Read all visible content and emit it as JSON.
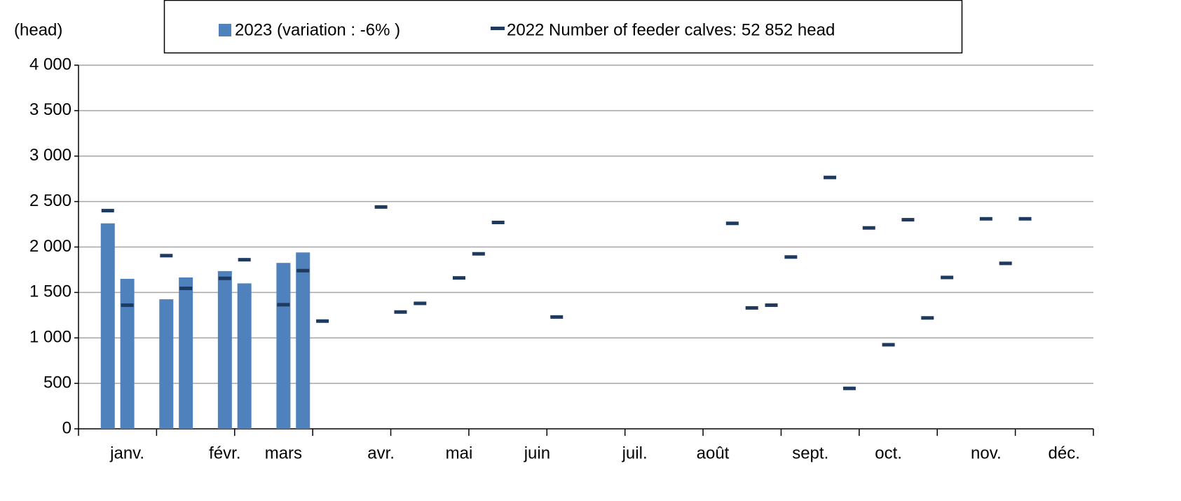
{
  "chart_data": {
    "type": "bar",
    "y_label": "(head)",
    "categories": [
      null,
      null,
      "janv.",
      null,
      null,
      null,
      null,
      "févr.",
      null,
      null,
      "mars",
      null,
      null,
      null,
      null,
      "avr.",
      null,
      null,
      null,
      "mai",
      null,
      null,
      null,
      "juin",
      null,
      null,
      null,
      null,
      "juil.",
      null,
      null,
      null,
      "août",
      null,
      null,
      null,
      null,
      "sept.",
      null,
      null,
      null,
      "oct.",
      null,
      null,
      null,
      null,
      "nov.",
      null,
      null,
      null,
      "déc.",
      null
    ],
    "series": [
      {
        "name": "2023 (variation : -6% )",
        "type": "bar",
        "color": "#4f81bd",
        "values": [
          null,
          2260,
          1650,
          null,
          1425,
          1665,
          null,
          1735,
          1600,
          null,
          1825,
          1940,
          null,
          null,
          null,
          null,
          null,
          null,
          null,
          null,
          null,
          null,
          null,
          null,
          null,
          null,
          null,
          null,
          null,
          null,
          null,
          null,
          null,
          null,
          null,
          null,
          null,
          null,
          null,
          null,
          null,
          null,
          null,
          null,
          null,
          null,
          null,
          null,
          null,
          null,
          null,
          null
        ]
      },
      {
        "name": "2022 Number of feeder calves: 52 852 head",
        "type": "dash",
        "color": "#1f3a5f",
        "values": [
          null,
          2400,
          1360,
          null,
          1905,
          1545,
          null,
          1655,
          1860,
          null,
          1365,
          1740,
          1185,
          null,
          null,
          2440,
          1285,
          1380,
          null,
          1660,
          1925,
          2270,
          null,
          null,
          1230,
          null,
          null,
          null,
          null,
          null,
          null,
          null,
          null,
          2260,
          1330,
          1360,
          1890,
          null,
          2765,
          445,
          2210,
          925,
          2300,
          1220,
          1665,
          null,
          2310,
          1820,
          2310,
          null,
          null,
          null
        ]
      }
    ],
    "ylim": [
      0,
      4000
    ],
    "yticks": [
      0,
      500,
      {
        "value": 1000,
        "label": "1 000"
      },
      {
        "value": 1500,
        "label": "1 500"
      },
      {
        "value": 2000,
        "label": "2 000"
      },
      {
        "value": 2500,
        "label": "2 500"
      },
      {
        "value": 3000,
        "label": "3 000"
      },
      {
        "value": 3500,
        "label": "3 500"
      },
      {
        "value": 4000,
        "label": "4 000"
      }
    ],
    "grid": true
  }
}
